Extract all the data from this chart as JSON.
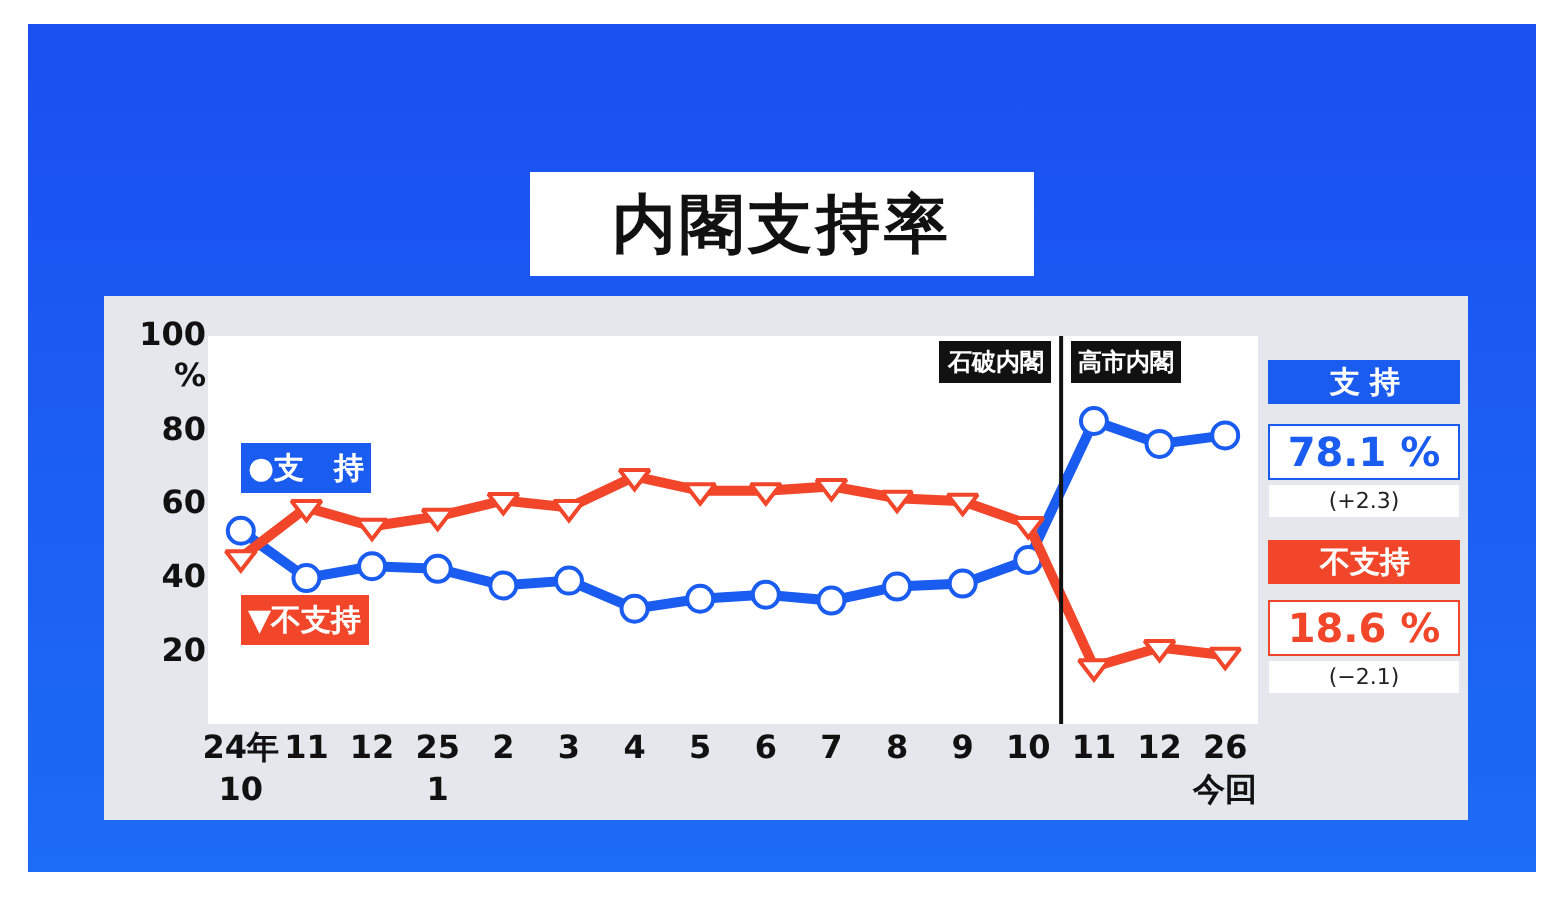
{
  "chart_data": {
    "type": "line",
    "title": "内閣支持率",
    "categories": [
      "24年\n10",
      "11",
      "12",
      "25\n1",
      "2",
      "3",
      "4",
      "5",
      "6",
      "7",
      "8",
      "9",
      "10",
      "11",
      "12",
      "26\n今回"
    ],
    "series": [
      {
        "name": "●支　持",
        "color": "#1a5cf0",
        "marker": "circle",
        "values": [
          52.3,
          39.5,
          42.7,
          42,
          37.5,
          38.8,
          31.2,
          33.9,
          35,
          33.4,
          37.2,
          38,
          44.4,
          82,
          75.8,
          78.1
        ]
      },
      {
        "name": "▼不支持",
        "color": "#f2462a",
        "marker": "triangle",
        "values": [
          45,
          58.6,
          53.5,
          56.2,
          60.5,
          58.6,
          67,
          63.1,
          63.1,
          64.3,
          61.1,
          60.3,
          54,
          15.5,
          20.7,
          18.6
        ]
      }
    ],
    "ylim": [
      0,
      105
    ],
    "yticks": [
      20,
      40,
      60,
      80,
      {
        "value": 100,
        "label": "100\n%"
      }
    ],
    "grid": false,
    "legend": "left",
    "annotations": [
      "支 持",
      "78.1 %",
      "(+2.3)",
      "不支持",
      "18.6 %",
      "(−2.1)",
      "石破内閣",
      "高市内閣"
    ]
  }
}
